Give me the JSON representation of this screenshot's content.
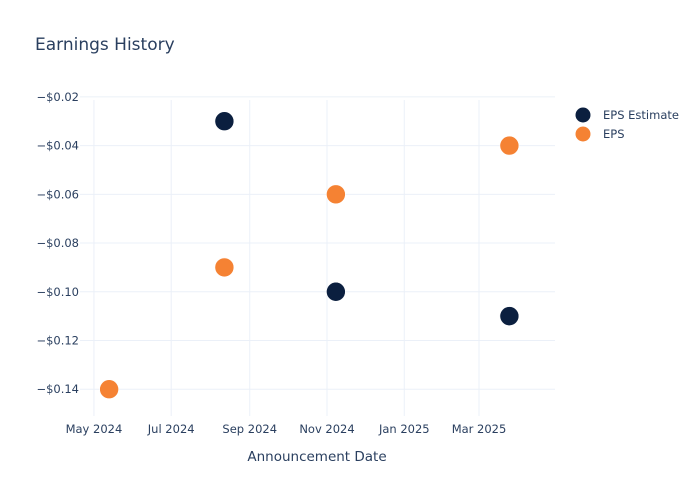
{
  "chart_data": {
    "type": "scatter",
    "title": "Earnings History",
    "xlabel": "Announcement Date",
    "ylabel": "",
    "x_axis_type": "date",
    "xlim": [
      "2024-04-20",
      "2025-04-30"
    ],
    "ylim": [
      -0.151,
      -0.018
    ],
    "x_ticks": [
      {
        "date": "2024-05-01",
        "label": "May 2024"
      },
      {
        "date": "2024-07-01",
        "label": "Jul 2024"
      },
      {
        "date": "2024-09-01",
        "label": "Sep 2024"
      },
      {
        "date": "2024-11-01",
        "label": "Nov 2024"
      },
      {
        "date": "2025-01-01",
        "label": "Jan 2025"
      },
      {
        "date": "2025-03-01",
        "label": "Mar 2025"
      }
    ],
    "y_ticks": [
      {
        "value": -0.02,
        "label": "−$0.02"
      },
      {
        "value": -0.04,
        "label": "−$0.04"
      },
      {
        "value": -0.06,
        "label": "−$0.06"
      },
      {
        "value": -0.08,
        "label": "−$0.08"
      },
      {
        "value": -0.1,
        "label": "−$0.10"
      },
      {
        "value": -0.12,
        "label": "−$0.12"
      },
      {
        "value": -0.14,
        "label": "−$0.14"
      }
    ],
    "grid": true,
    "legend_position": "top-right",
    "series": [
      {
        "name": "EPS Estimate",
        "color": "#0b1f3f",
        "points": [
          {
            "x": "2024-05-13",
            "y": -0.14
          },
          {
            "x": "2024-08-12",
            "y": -0.03
          },
          {
            "x": "2024-11-08",
            "y": -0.1
          },
          {
            "x": "2025-03-25",
            "y": -0.11
          }
        ]
      },
      {
        "name": "EPS",
        "color": "#f58233",
        "points": [
          {
            "x": "2024-05-13",
            "y": -0.14
          },
          {
            "x": "2024-08-12",
            "y": -0.09
          },
          {
            "x": "2024-11-08",
            "y": -0.06
          },
          {
            "x": "2025-03-25",
            "y": -0.04
          }
        ]
      }
    ]
  }
}
